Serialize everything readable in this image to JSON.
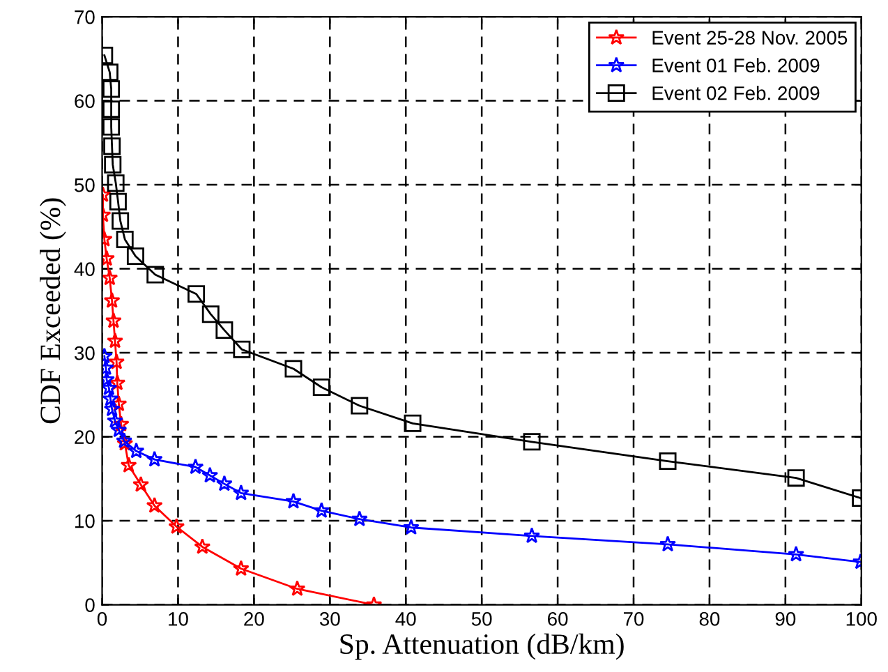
{
  "chart_data": {
    "type": "line",
    "xlabel": "Sp. Attenuation (dB/km)",
    "ylabel": "CDF Exceeded (%)",
    "xlim": [
      0,
      100
    ],
    "ylim": [
      0,
      70
    ],
    "xticks": [
      0,
      10,
      20,
      30,
      40,
      50,
      60,
      70,
      80,
      90,
      100
    ],
    "yticks": [
      0,
      10,
      20,
      30,
      40,
      50,
      60,
      70
    ],
    "grid": true,
    "legend": "top right",
    "line_style": "solid",
    "series": [
      {
        "name": "Event 25-28 Nov. 2005",
        "color": "#ff0000",
        "marker": "star",
        "x": [
          0.1,
          0.1,
          0.3,
          0.6,
          1.0,
          1.3,
          1.5,
          1.7,
          1.9,
          2.0,
          2.2,
          2.5,
          3.0,
          3.5,
          5.1,
          6.9,
          9.8,
          13.2,
          18.3,
          25.7,
          35.8
        ],
        "values": [
          48.8,
          46.4,
          43.5,
          41.2,
          38.9,
          36.2,
          33.8,
          31.4,
          28.9,
          26.4,
          23.9,
          21.5,
          19.2,
          16.6,
          14.3,
          11.8,
          9.3,
          6.9,
          4.3,
          1.9,
          0
        ]
      },
      {
        "name": "Event 01 Feb. 2009",
        "color": "#0000ff",
        "marker": "star",
        "x": [
          0.3,
          0.5,
          0.6,
          0.9,
          1.1,
          1.3,
          1.7,
          2.2,
          2.9,
          4.5,
          6.9,
          12.3,
          14.2,
          16.1,
          18.3,
          25.2,
          28.9,
          33.9,
          40.7,
          56.6,
          74.5,
          91.4,
          99.9
        ],
        "values": [
          29.6,
          28.2,
          26.8,
          25.8,
          24.5,
          23.3,
          21.9,
          20.8,
          19.5,
          18.3,
          17.3,
          16.4,
          15.4,
          14.4,
          13.3,
          12.3,
          11.2,
          10.2,
          9.2,
          8.2,
          7.2,
          6.0,
          5.1
        ]
      },
      {
        "name": "Event 02 Feb. 2009",
        "color": "#000000",
        "marker": "square",
        "x": [
          0.3,
          1.0,
          1.2,
          1.2,
          1.2,
          1.3,
          1.4,
          1.8,
          2.1,
          2.4,
          3.0,
          4.4,
          7.0,
          12.4,
          14.3,
          16.1,
          18.4,
          25.2,
          28.9,
          33.9,
          40.9,
          56.6,
          74.5,
          91.4,
          99.9
        ],
        "values": [
          65.4,
          63.4,
          61.4,
          59.0,
          56.9,
          54.6,
          52.4,
          50.2,
          48.0,
          45.7,
          43.5,
          41.5,
          39.3,
          37.0,
          34.6,
          32.7,
          30.4,
          28.1,
          25.9,
          23.7,
          21.6,
          19.4,
          17.1,
          15.1,
          12.7
        ]
      }
    ]
  }
}
